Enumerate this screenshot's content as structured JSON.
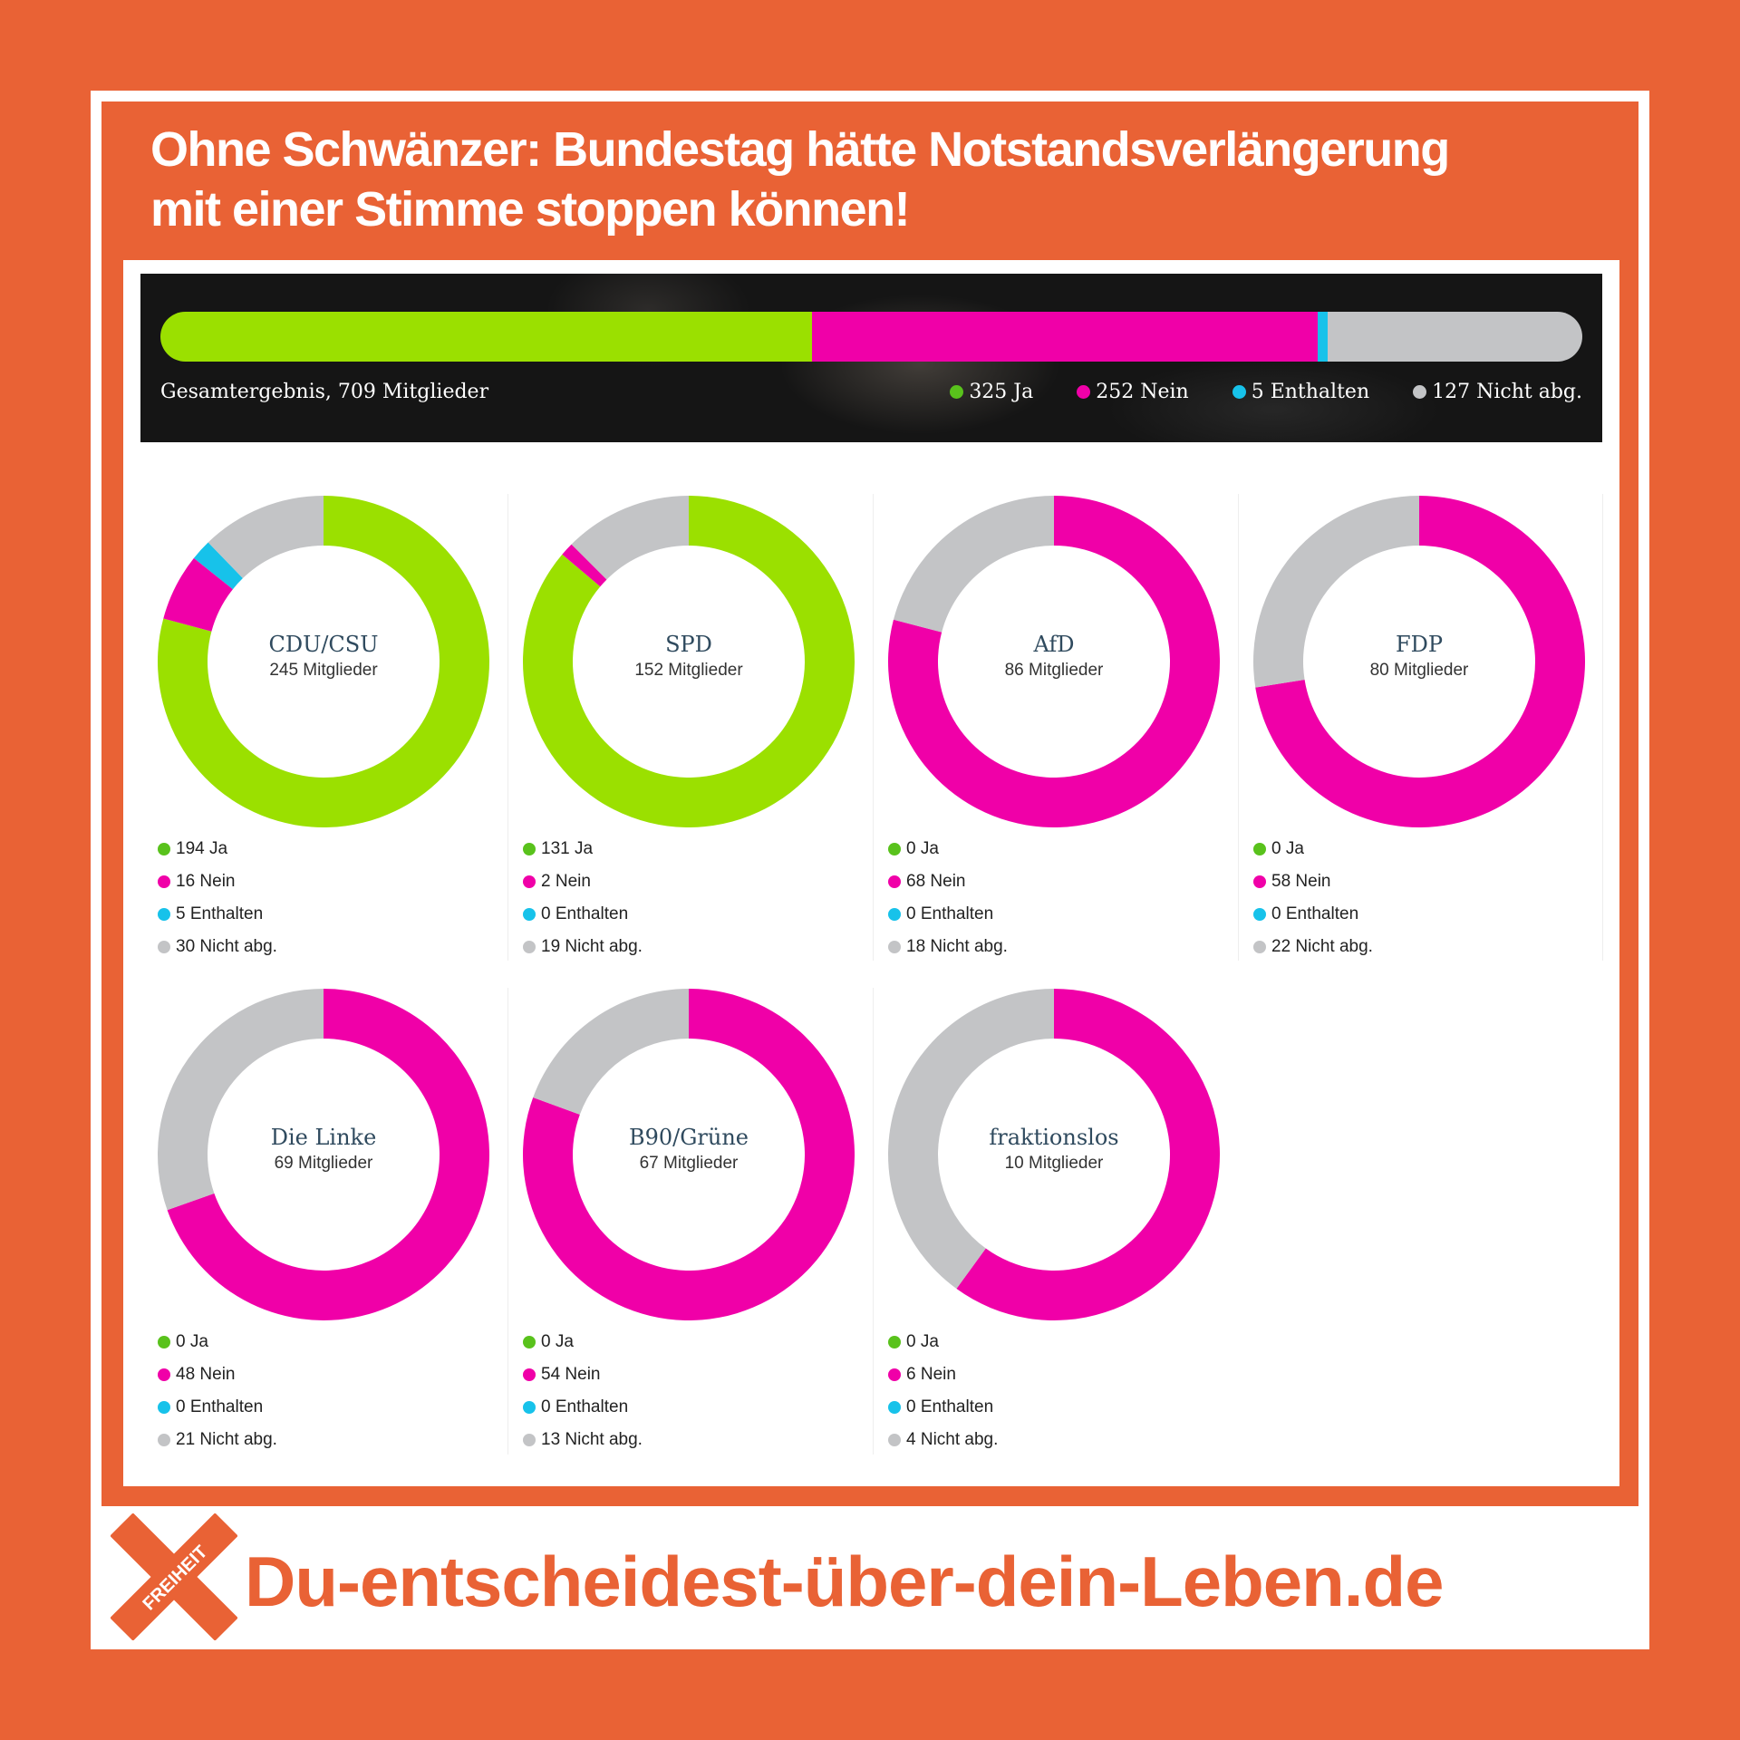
{
  "headline": {
    "line1": "Ohne Schwänzer: Bundestag hätte Notstandsverlängerung",
    "line2": "mit einer Stimme stoppen können!"
  },
  "colors": {
    "ja": "#9be000",
    "nein": "#f000a8",
    "enthalten": "#17c2ea",
    "nicht": "#c3c4c6",
    "legend_ja": "#59c21c",
    "brand_orange": "#e96235"
  },
  "total": {
    "caption": "Gesamtergebnis, 709 Mitglieder",
    "legend": {
      "ja": "325 Ja",
      "nein": "252 Nein",
      "enthalten": "5 Enthalten",
      "nicht": "127 Nicht abg."
    }
  },
  "parties": [
    {
      "name": "CDU/CSU",
      "members": "245 Mitglieder",
      "labels": {
        "ja": "194 Ja",
        "nein": "16 Nein",
        "enthalten": "5 Enthalten",
        "nicht": "30 Nicht abg."
      }
    },
    {
      "name": "SPD",
      "members": "152 Mitglieder",
      "labels": {
        "ja": "131 Ja",
        "nein": "2 Nein",
        "enthalten": "0 Enthalten",
        "nicht": "19 Nicht abg."
      }
    },
    {
      "name": "AfD",
      "members": "86 Mitglieder",
      "labels": {
        "ja": "0 Ja",
        "nein": "68 Nein",
        "enthalten": "0 Enthalten",
        "nicht": "18 Nicht abg."
      }
    },
    {
      "name": "FDP",
      "members": "80 Mitglieder",
      "labels": {
        "ja": "0 Ja",
        "nein": "58 Nein",
        "enthalten": "0 Enthalten",
        "nicht": "22 Nicht abg."
      }
    },
    {
      "name": "Die Linke",
      "members": "69 Mitglieder",
      "labels": {
        "ja": "0 Ja",
        "nein": "48 Nein",
        "enthalten": "0 Enthalten",
        "nicht": "21 Nicht abg."
      }
    },
    {
      "name": "B90/Grüne",
      "members": "67 Mitglieder",
      "labels": {
        "ja": "0 Ja",
        "nein": "54 Nein",
        "enthalten": "0 Enthalten",
        "nicht": "13 Nicht abg."
      }
    },
    {
      "name": "fraktionslos",
      "members": "10 Mitglieder",
      "labels": {
        "ja": "0 Ja",
        "nein": "6 Nein",
        "enthalten": "0 Enthalten",
        "nicht": "4 Nicht abg."
      }
    }
  ],
  "chart_data": [
    {
      "type": "bar",
      "stacked": true,
      "title": "Gesamtergebnis, 709 Mitglieder",
      "categories": [
        "Gesamtergebnis"
      ],
      "series": [
        {
          "name": "Ja",
          "values": [
            325
          ]
        },
        {
          "name": "Nein",
          "values": [
            252
          ]
        },
        {
          "name": "Enthalten",
          "values": [
            5
          ]
        },
        {
          "name": "Nicht abg.",
          "values": [
            127
          ]
        }
      ]
    },
    {
      "type": "pie",
      "donut": true,
      "title": "CDU/CSU",
      "categories": [
        "Ja",
        "Nein",
        "Enthalten",
        "Nicht abg."
      ],
      "values": [
        194,
        16,
        5,
        30
      ]
    },
    {
      "type": "pie",
      "donut": true,
      "title": "SPD",
      "categories": [
        "Ja",
        "Nein",
        "Enthalten",
        "Nicht abg."
      ],
      "values": [
        131,
        2,
        0,
        19
      ]
    },
    {
      "type": "pie",
      "donut": true,
      "title": "AfD",
      "categories": [
        "Ja",
        "Nein",
        "Enthalten",
        "Nicht abg."
      ],
      "values": [
        0,
        68,
        0,
        18
      ]
    },
    {
      "type": "pie",
      "donut": true,
      "title": "FDP",
      "categories": [
        "Ja",
        "Nein",
        "Enthalten",
        "Nicht abg."
      ],
      "values": [
        0,
        58,
        0,
        22
      ]
    },
    {
      "type": "pie",
      "donut": true,
      "title": "Die Linke",
      "categories": [
        "Ja",
        "Nein",
        "Enthalten",
        "Nicht abg."
      ],
      "values": [
        0,
        48,
        0,
        21
      ]
    },
    {
      "type": "pie",
      "donut": true,
      "title": "B90/Grüne",
      "categories": [
        "Ja",
        "Nein",
        "Enthalten",
        "Nicht abg."
      ],
      "values": [
        0,
        54,
        0,
        13
      ]
    },
    {
      "type": "pie",
      "donut": true,
      "title": "fraktionslos",
      "categories": [
        "Ja",
        "Nein",
        "Enthalten",
        "Nicht abg."
      ],
      "values": [
        0,
        6,
        0,
        4
      ]
    }
  ],
  "footer": {
    "logo_text": "FREIHEIT",
    "site": "Du-entscheidest-über-dein-Leben.de"
  }
}
